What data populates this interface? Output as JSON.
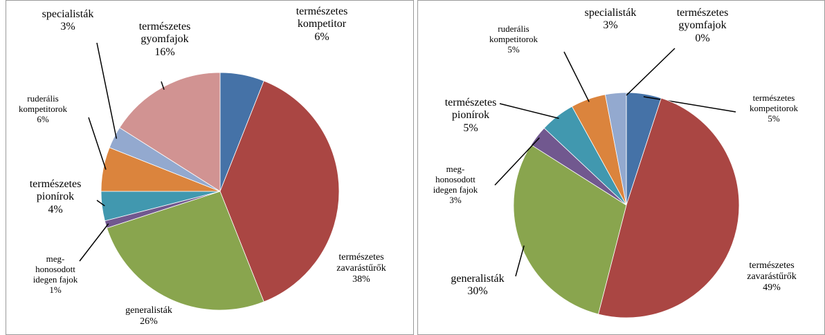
{
  "chart_data": [
    {
      "type": "pie",
      "categories": [
        "természetes\nkompetitor",
        "természetes\nzavarástűrők",
        "generalisták",
        "meg-\nhonosodott\nidegen fajok",
        "természetes\npionírok",
        "ruderális\nkompetitorok",
        "specialisták",
        "természetes\ngyomfajok"
      ],
      "values": [
        6,
        38,
        26,
        1,
        4,
        6,
        3,
        16
      ],
      "value_labels": [
        "6%",
        "38%",
        "26%",
        "1%",
        "4%",
        "6%",
        "3%",
        "16%"
      ],
      "colors": [
        "#4572a7",
        "#aa4643",
        "#89a54e",
        "#71588f",
        "#4198af",
        "#db843d",
        "#93a9cf",
        "#d19392"
      ]
    },
    {
      "type": "pie",
      "categories": [
        "természetes\nkompetitorok",
        "természetes\nzavarástűrők",
        "generalisták",
        "meg-\nhonosodott\nidegen fajok",
        "természetes\npionírok",
        "ruderális\nkompetitorok",
        "specialisták",
        "természetes\ngyomfajok"
      ],
      "values": [
        5,
        49,
        30,
        3,
        5,
        5,
        3,
        0
      ],
      "value_labels": [
        "5%",
        "49%",
        "30%",
        "3%",
        "5%",
        "5%",
        "3%",
        "0%"
      ],
      "colors": [
        "#4572a7",
        "#aa4643",
        "#89a54e",
        "#71588f",
        "#4198af",
        "#db843d",
        "#93a9cf",
        "#d19392"
      ]
    }
  ]
}
